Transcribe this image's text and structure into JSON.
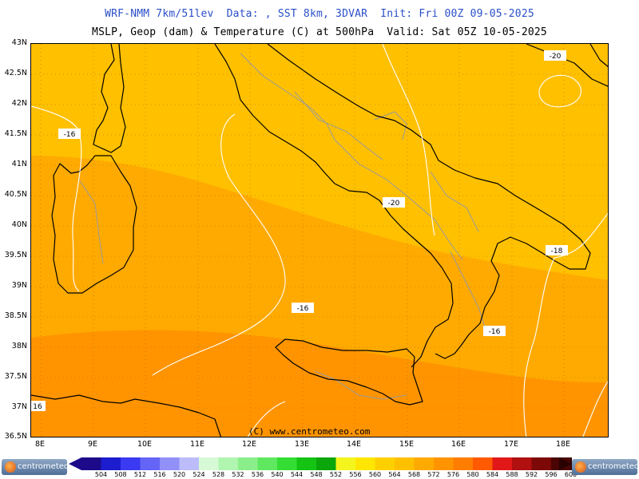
{
  "header": {
    "title_line1": "WRF-NMM 7km/51lev  Data: , SST 8km, 3DVAR  Init: Fri 00Z 09-05-2025",
    "title_line2": "MSLP, Geop (dam) & Temperature (C) at 500hPa  Valid: Sat 05Z 10-05-2025"
  },
  "map": {
    "lat_labels": [
      "43N",
      "42.5N",
      "42N",
      "41.5N",
      "41N",
      "40.5N",
      "40N",
      "39.5N",
      "39N",
      "38.5N",
      "38N",
      "37.5N",
      "37N",
      "36.5N"
    ],
    "lon_labels": [
      "8E",
      "9E",
      "10E",
      "11E",
      "12E",
      "13E",
      "14E",
      "15E",
      "16E",
      "17E",
      "18E"
    ],
    "credit": "(C) www.centrometeo.com",
    "isotherm_labels": [
      {
        "text": "-16"
      },
      {
        "text": "-20"
      },
      {
        "text": "-20"
      },
      {
        "text": "-18"
      },
      {
        "text": "-16"
      },
      {
        "text": "-16"
      },
      {
        "text": "16"
      }
    ],
    "colors": {
      "band_564": "#ffc000",
      "band_568": "#ffaa00",
      "band_572": "#ff9400",
      "band_576": "#ff7e00",
      "coastline": "#000000",
      "boundaries": "#9a9a9a",
      "isotherm": "#ffffff"
    }
  },
  "legend": {
    "values": [
      "504",
      "508",
      "512",
      "516",
      "520",
      "524",
      "528",
      "532",
      "536",
      "540",
      "544",
      "548",
      "552",
      "556",
      "560",
      "564",
      "568",
      "572",
      "576",
      "580",
      "584",
      "588",
      "592",
      "596",
      "600"
    ],
    "colors": [
      "#1c0a8a",
      "#1d1dd0",
      "#3a3af2",
      "#6464f6",
      "#9090f8",
      "#bcbcfa",
      "#d6fad6",
      "#b0f5b0",
      "#8aef8a",
      "#5fe85f",
      "#34dd34",
      "#14c314",
      "#0aa60a",
      "#f5f51e",
      "#ffe600",
      "#ffd000",
      "#ffc000",
      "#ffaa00",
      "#ff9400",
      "#ff7e00",
      "#ff5a00",
      "#e21818",
      "#b01010",
      "#7c0808",
      "#4a0404",
      "#2a0202"
    ],
    "logo_text": "centrometeo"
  }
}
